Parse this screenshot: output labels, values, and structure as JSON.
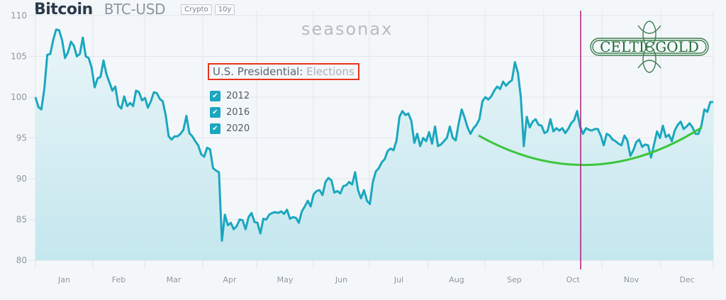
{
  "header": {
    "title": "Bitcoin",
    "ticker": "BTC-USD",
    "tags": [
      "Crypto",
      "10y"
    ]
  },
  "watermark": "seasonax",
  "logo": {
    "text": "CELTICGOLD",
    "color": "#1f6b36"
  },
  "legend": {
    "title_main": "U.S. Presidential:",
    "title_sub": "Elections",
    "items": [
      {
        "label": "2012",
        "checked": true
      },
      {
        "label": "2016",
        "checked": true
      },
      {
        "label": "2020",
        "checked": true
      }
    ]
  },
  "colors": {
    "line": "#1aa7bf",
    "fill_top": "#e9f5f8",
    "fill_bottom": "#c4e7ee",
    "trend": "#3cc63c",
    "marker": "#b0187a",
    "highlight_box": "#e8341c"
  },
  "chart_data": {
    "type": "area",
    "title": "Bitcoin BTC-USD — U.S. Presidential Elections seasonality (10y)",
    "xlabel": "",
    "ylabel": "",
    "ylim": [
      80,
      110
    ],
    "yticks": [
      80,
      85,
      90,
      95,
      100,
      105,
      110
    ],
    "categories": [
      "Jan",
      "Feb",
      "Mar",
      "Apr",
      "May",
      "Jun",
      "Jul",
      "Aug",
      "Sep",
      "Oct",
      "Nov",
      "Dec"
    ],
    "grid": true,
    "legend_position": "top-left inside",
    "annotations": [
      "vertical marker line in early October (election date)",
      "green U-shaped trend curve from mid-Aug to mid-Dec, minimum ~91.7 near mid-Oct"
    ],
    "series": [
      {
        "name": "Election years (2012, 2016, 2020)",
        "points": [
          [
            0,
            100.0
          ],
          [
            1,
            98.8
          ],
          [
            2,
            98.5
          ],
          [
            3,
            101
          ],
          [
            4,
            105.2
          ],
          [
            5,
            105.3
          ],
          [
            6,
            107
          ],
          [
            7,
            108.3
          ],
          [
            8,
            108.2
          ],
          [
            9,
            107
          ],
          [
            10,
            104.8
          ],
          [
            11,
            105.5
          ],
          [
            12,
            106.8
          ],
          [
            13,
            106.3
          ],
          [
            14,
            105
          ],
          [
            15,
            105.3
          ],
          [
            16,
            107.3
          ],
          [
            17,
            105
          ],
          [
            18,
            104.8
          ],
          [
            19,
            103.6
          ],
          [
            20,
            101.2
          ],
          [
            21,
            102.3
          ],
          [
            22,
            102.5
          ],
          [
            23,
            104.5
          ],
          [
            24,
            102.8
          ],
          [
            25,
            101.8
          ],
          [
            26,
            100.8
          ],
          [
            27,
            101.3
          ],
          [
            28,
            99
          ],
          [
            29,
            98.6
          ],
          [
            30,
            100.1
          ],
          [
            31,
            98.9
          ],
          [
            32,
            99.3
          ],
          [
            33,
            98.9
          ],
          [
            34,
            100.8
          ],
          [
            35,
            100.6
          ],
          [
            36,
            99.6
          ],
          [
            37,
            99.9
          ],
          [
            38,
            98.7
          ],
          [
            39,
            99.5
          ],
          [
            40,
            100.6
          ],
          [
            41,
            100.5
          ],
          [
            42,
            99.8
          ],
          [
            43,
            99.5
          ],
          [
            44,
            97.8
          ],
          [
            45,
            95.2
          ],
          [
            46,
            94.8
          ],
          [
            47,
            95.2
          ],
          [
            48,
            95.2
          ],
          [
            49,
            95.5
          ],
          [
            50,
            96
          ],
          [
            51,
            97.7
          ],
          [
            52,
            95.6
          ],
          [
            53,
            95.2
          ],
          [
            54,
            94.6
          ],
          [
            55,
            94.1
          ],
          [
            56,
            93
          ],
          [
            57,
            92.7
          ],
          [
            58,
            93.8
          ],
          [
            59,
            93.6
          ],
          [
            60,
            91.3
          ],
          [
            61,
            91.0
          ],
          [
            62,
            90.8
          ],
          [
            63,
            82.4
          ],
          [
            64,
            85.6
          ],
          [
            65,
            84.3
          ],
          [
            66,
            84.6
          ],
          [
            67,
            83.8
          ],
          [
            68,
            84.2
          ],
          [
            69,
            85
          ],
          [
            70,
            84.9
          ],
          [
            71,
            83.8
          ],
          [
            72,
            85.3
          ],
          [
            73,
            85.8
          ],
          [
            74,
            84.7
          ],
          [
            75,
            84.6
          ],
          [
            76,
            83.3
          ],
          [
            77,
            85.1
          ],
          [
            78,
            85
          ],
          [
            79,
            85.6
          ],
          [
            80,
            85.8
          ],
          [
            81,
            85.9
          ],
          [
            82,
            85.8
          ],
          [
            83,
            86
          ],
          [
            84,
            85.7
          ],
          [
            85,
            86.2
          ],
          [
            86,
            85.1
          ],
          [
            87,
            85.3
          ],
          [
            88,
            85.2
          ],
          [
            89,
            84.6
          ],
          [
            90,
            86
          ],
          [
            91,
            86.6
          ],
          [
            92,
            87.3
          ],
          [
            93,
            86.6
          ],
          [
            94,
            88.1
          ],
          [
            95,
            88.5
          ],
          [
            96,
            88.6
          ],
          [
            97,
            88
          ],
          [
            98,
            89.6
          ],
          [
            99,
            90.1
          ],
          [
            100,
            89.8
          ],
          [
            101,
            88.3
          ],
          [
            102,
            88.5
          ],
          [
            103,
            88.2
          ],
          [
            104,
            89.1
          ],
          [
            105,
            89.2
          ],
          [
            106,
            89.6
          ],
          [
            107,
            89.3
          ],
          [
            108,
            90.8
          ],
          [
            109,
            88.6
          ],
          [
            110,
            87.6
          ],
          [
            111,
            88.6
          ],
          [
            112,
            87.3
          ],
          [
            113,
            86.9
          ],
          [
            114,
            89.6
          ],
          [
            115,
            90.9
          ],
          [
            116,
            91.3
          ],
          [
            117,
            92
          ],
          [
            118,
            92.4
          ],
          [
            119,
            93.4
          ],
          [
            120,
            93.7
          ],
          [
            121,
            93.5
          ],
          [
            122,
            94.7
          ],
          [
            123,
            97.6
          ],
          [
            124,
            98.3
          ],
          [
            125,
            97.8
          ],
          [
            126,
            98
          ],
          [
            127,
            97.1
          ],
          [
            128,
            94.4
          ],
          [
            129,
            95.5
          ],
          [
            130,
            94
          ],
          [
            131,
            95
          ],
          [
            132,
            94.6
          ],
          [
            133,
            95.7
          ],
          [
            134,
            94.3
          ],
          [
            135,
            96.4
          ],
          [
            136,
            94
          ],
          [
            137,
            94.2
          ],
          [
            138,
            94.6
          ],
          [
            139,
            95
          ],
          [
            140,
            96.4
          ],
          [
            141,
            95
          ],
          [
            142,
            94.7
          ],
          [
            143,
            96.8
          ],
          [
            144,
            98.5
          ],
          [
            145,
            97.5
          ],
          [
            146,
            96.3
          ],
          [
            147,
            95.5
          ],
          [
            148,
            96.2
          ],
          [
            149,
            96.6
          ],
          [
            150,
            97.3
          ],
          [
            151,
            99.5
          ],
          [
            152,
            100
          ],
          [
            153,
            99.7
          ],
          [
            154,
            100.1
          ],
          [
            155,
            100.8
          ],
          [
            156,
            101.3
          ],
          [
            157,
            101
          ],
          [
            158,
            101.9
          ],
          [
            159,
            101.4
          ],
          [
            160,
            101.8
          ],
          [
            161,
            102.1
          ],
          [
            162,
            104.3
          ],
          [
            163,
            103
          ],
          [
            164,
            100
          ],
          [
            165,
            94
          ],
          [
            166,
            97.6
          ],
          [
            167,
            96.3
          ],
          [
            168,
            97
          ],
          [
            169,
            97.3
          ],
          [
            170,
            96.6
          ],
          [
            171,
            96.5
          ],
          [
            172,
            95.6
          ],
          [
            173,
            95.8
          ],
          [
            174,
            97.3
          ],
          [
            175,
            95.8
          ],
          [
            176,
            96.2
          ],
          [
            177,
            95.9
          ],
          [
            178,
            96.2
          ],
          [
            179,
            95.6
          ],
          [
            180,
            96.1
          ],
          [
            181,
            96.8
          ],
          [
            182,
            97.2
          ],
          [
            183,
            98.3
          ],
          [
            184,
            96.4
          ],
          [
            185,
            95.5
          ],
          [
            186,
            96.2
          ],
          [
            187,
            96
          ],
          [
            188,
            95.9
          ],
          [
            189,
            96.1
          ],
          [
            190,
            96.1
          ],
          [
            191,
            95.3
          ],
          [
            192,
            94.1
          ],
          [
            193,
            95.5
          ],
          [
            194,
            95.3
          ],
          [
            195,
            94.8
          ],
          [
            196,
            94.6
          ],
          [
            197,
            94.3
          ],
          [
            198,
            94.1
          ],
          [
            199,
            95.3
          ],
          [
            200,
            94.7
          ],
          [
            201,
            92.8
          ],
          [
            202,
            93.5
          ],
          [
            203,
            94.5
          ],
          [
            204,
            94.8
          ],
          [
            205,
            93.9
          ],
          [
            206,
            94.2
          ],
          [
            207,
            94.1
          ],
          [
            208,
            92.6
          ],
          [
            209,
            94.2
          ],
          [
            210,
            95.8
          ],
          [
            211,
            95
          ],
          [
            212,
            96.5
          ],
          [
            213,
            95.1
          ],
          [
            214,
            95.4
          ],
          [
            215,
            94.6
          ],
          [
            216,
            95.9
          ],
          [
            217,
            96.6
          ],
          [
            218,
            97
          ],
          [
            219,
            96.1
          ],
          [
            220,
            96.4
          ],
          [
            221,
            96.8
          ],
          [
            222,
            96.3
          ],
          [
            223,
            95.5
          ],
          [
            224,
            95.5
          ],
          [
            225,
            96.5
          ],
          [
            226,
            98.5
          ],
          [
            227,
            98.2
          ],
          [
            228,
            99.4
          ],
          [
            229,
            99.4
          ]
        ]
      },
      {
        "name": "Trend curve (annotation)",
        "points": [
          [
            0,
            95.3
          ],
          [
            0.5,
            91.7
          ],
          [
            1,
            96.3
          ]
        ]
      }
    ]
  }
}
